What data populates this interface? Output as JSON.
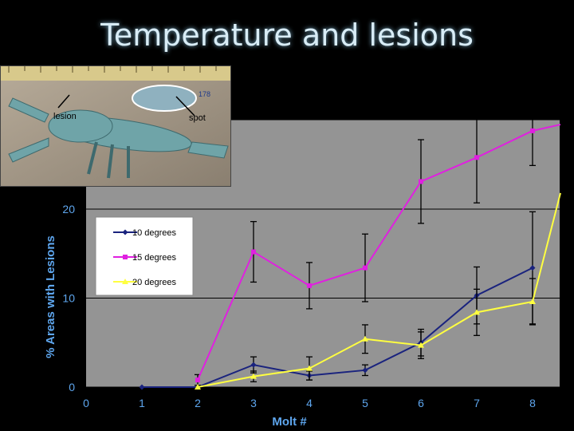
{
  "title": "Temperature and lesions",
  "photo": {
    "label_lesion": "lesion",
    "label_spot": "spot",
    "ruler_text": "178"
  },
  "chart_data": {
    "type": "line",
    "title": "Temperature and lesions",
    "xlabel": "Molt #",
    "ylabel": "% Areas with Lesions",
    "x": [
      0,
      1,
      2,
      3,
      4,
      5,
      6,
      7,
      8
    ],
    "x_ticks": [
      "0",
      "1",
      "2",
      "3",
      "4",
      "5",
      "6",
      "7",
      "8"
    ],
    "y_ticks": [
      "0",
      "10",
      "20"
    ],
    "xlim": [
      0,
      8.5
    ],
    "ylim": [
      0,
      30
    ],
    "grid": true,
    "legend_position": "upper-left",
    "series": [
      {
        "name": "10 degrees",
        "color": "#1a237e",
        "marker": "diamond",
        "x": [
          1,
          2,
          3,
          4,
          5,
          6,
          7,
          8
        ],
        "values": [
          0,
          0,
          2.5,
          1.3,
          1.9,
          5.0,
          10.3,
          13.4
        ],
        "errors": [
          0,
          0,
          0.9,
          0.5,
          0.6,
          1.5,
          3.2,
          6.3
        ]
      },
      {
        "name": "15 degrees",
        "color": "#e020e0",
        "marker": "square",
        "x": [
          2,
          3,
          4,
          5,
          6,
          7,
          8,
          8.5
        ],
        "values": [
          0.8,
          15.2,
          11.4,
          13.4,
          23.1,
          25.8,
          28.8,
          29.5
        ],
        "errors": [
          0.6,
          3.4,
          2.6,
          3.8,
          4.7,
          5.1,
          3.9,
          0
        ]
      },
      {
        "name": "20 degrees",
        "color": "#ffff40",
        "marker": "triangle",
        "x": [
          2,
          3,
          4,
          5,
          6,
          7,
          8,
          8.5
        ],
        "values": [
          0,
          1.2,
          2.1,
          5.4,
          4.7,
          8.4,
          9.6,
          21.8
        ],
        "errors": [
          0,
          0.6,
          1.3,
          1.6,
          1.5,
          2.6,
          2.6,
          0
        ]
      }
    ]
  }
}
